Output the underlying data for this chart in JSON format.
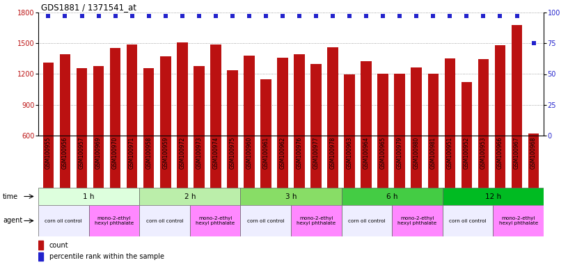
{
  "title": "GDS1881 / 1371541_at",
  "samples": [
    "GSM100955",
    "GSM100956",
    "GSM100957",
    "GSM100969",
    "GSM100970",
    "GSM100971",
    "GSM100958",
    "GSM100959",
    "GSM100972",
    "GSM100973",
    "GSM100974",
    "GSM100975",
    "GSM100960",
    "GSM100961",
    "GSM100962",
    "GSM100976",
    "GSM100977",
    "GSM100978",
    "GSM100963",
    "GSM100964",
    "GSM100965",
    "GSM100979",
    "GSM100980",
    "GSM100981",
    "GSM100951",
    "GSM100952",
    "GSM100953",
    "GSM100966",
    "GSM100967",
    "GSM100968"
  ],
  "counts": [
    1310,
    1390,
    1255,
    1280,
    1455,
    1490,
    1255,
    1370,
    1510,
    1280,
    1490,
    1235,
    1380,
    1150,
    1360,
    1390,
    1300,
    1460,
    1195,
    1325,
    1200,
    1200,
    1265,
    1200,
    1355,
    1125,
    1345,
    1480,
    1680,
    620
  ],
  "percentile_ranks": [
    97,
    97,
    97,
    97,
    97,
    97,
    97,
    97,
    97,
    97,
    97,
    97,
    97,
    97,
    97,
    97,
    97,
    97,
    97,
    97,
    97,
    97,
    97,
    97,
    97,
    97,
    97,
    97,
    97,
    75
  ],
  "bar_color": "#bb1111",
  "dot_color": "#2222cc",
  "ylim_left": [
    600,
    1800
  ],
  "yticks_left": [
    600,
    900,
    1200,
    1500,
    1800
  ],
  "ylim_right": [
    0,
    100
  ],
  "yticks_right": [
    0,
    25,
    50,
    75,
    100
  ],
  "time_group_colors": [
    "#ddffdd",
    "#bbeeaa",
    "#88dd66",
    "#44cc44",
    "#00bb22"
  ],
  "time_groups": [
    {
      "label": "1 h",
      "start": 0,
      "end": 6
    },
    {
      "label": "2 h",
      "start": 6,
      "end": 12
    },
    {
      "label": "3 h",
      "start": 12,
      "end": 18
    },
    {
      "label": "6 h",
      "start": 18,
      "end": 24
    },
    {
      "label": "12 h",
      "start": 24,
      "end": 30
    }
  ],
  "agent_groups": [
    {
      "label": "corn oil control",
      "start": 0,
      "end": 3,
      "color": "#eeeeff"
    },
    {
      "label": "mono-2-ethyl\nhexyl phthalate",
      "start": 3,
      "end": 6,
      "color": "#ff88ff"
    },
    {
      "label": "corn oil control",
      "start": 6,
      "end": 9,
      "color": "#eeeeff"
    },
    {
      "label": "mono-2-ethyl\nhexyl phthalate",
      "start": 9,
      "end": 12,
      "color": "#ff88ff"
    },
    {
      "label": "corn oil control",
      "start": 12,
      "end": 15,
      "color": "#eeeeff"
    },
    {
      "label": "mono-2-ethyl\nhexyl phthalate",
      "start": 15,
      "end": 18,
      "color": "#ff88ff"
    },
    {
      "label": "corn oil control",
      "start": 18,
      "end": 21,
      "color": "#eeeeff"
    },
    {
      "label": "mono-2-ethyl\nhexyl phthalate",
      "start": 21,
      "end": 24,
      "color": "#ff88ff"
    },
    {
      "label": "corn oil control",
      "start": 24,
      "end": 27,
      "color": "#eeeeff"
    },
    {
      "label": "mono-2-ethyl\nhexyl phthalate",
      "start": 27,
      "end": 30,
      "color": "#ff88ff"
    }
  ],
  "legend_items": [
    {
      "label": "count",
      "color": "#bb1111"
    },
    {
      "label": "percentile rank within the sample",
      "color": "#2222cc"
    }
  ],
  "bg_color": "#ffffff"
}
